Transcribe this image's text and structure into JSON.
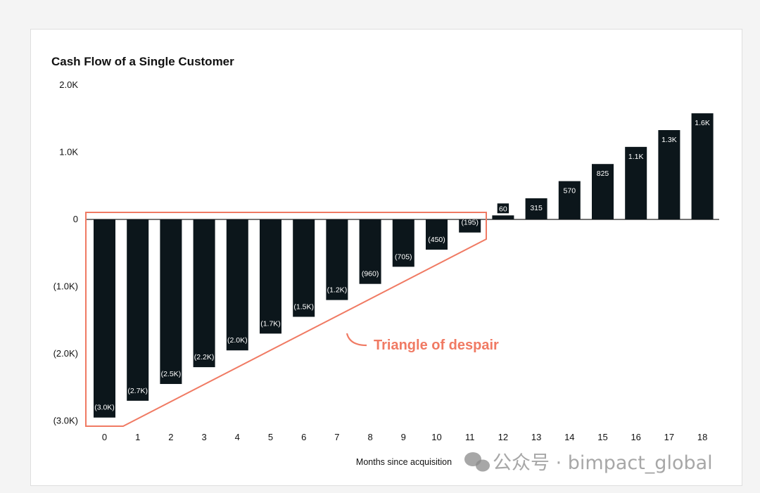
{
  "chart_data": {
    "type": "bar",
    "title": "Cash Flow of a Single Customer",
    "xlabel": "Months since acquisition",
    "ylabel": "",
    "ylim": [
      -3000,
      2000
    ],
    "yticks": [
      2000,
      1000,
      0,
      -1000,
      -2000,
      -3000
    ],
    "ytick_labels": [
      "2.0K",
      "1.0K",
      "0",
      "(1.0K)",
      "(2.0K)",
      "(3.0K)"
    ],
    "categories": [
      "0",
      "1",
      "2",
      "3",
      "4",
      "5",
      "6",
      "7",
      "8",
      "9",
      "10",
      "11",
      "12",
      "13",
      "14",
      "15",
      "16",
      "17",
      "18"
    ],
    "values": [
      -2950,
      -2700,
      -2450,
      -2200,
      -1950,
      -1700,
      -1450,
      -1200,
      -960,
      -705,
      -450,
      -195,
      60,
      315,
      570,
      825,
      1080,
      1330,
      1580
    ],
    "data_labels": [
      "(3.0K)",
      "(2.7K)",
      "(2.5K)",
      "(2.2K)",
      "(2.0K)",
      "(1.7K)",
      "(1.5K)",
      "(1.2K)",
      "(960)",
      "(705)",
      "(450)",
      "(195)",
      "60",
      "315",
      "570",
      "825",
      "1.1K",
      "1.3K",
      "1.6K"
    ],
    "bar_color": "#0c161b",
    "annotation": {
      "text": "Triangle of despair",
      "color": "#f07a63",
      "spans_categories": [
        "0",
        "11"
      ]
    },
    "grid": false,
    "legend": "none"
  },
  "watermark": {
    "text": "公众号 · bimpact_global",
    "icon": "wechat-icon"
  }
}
